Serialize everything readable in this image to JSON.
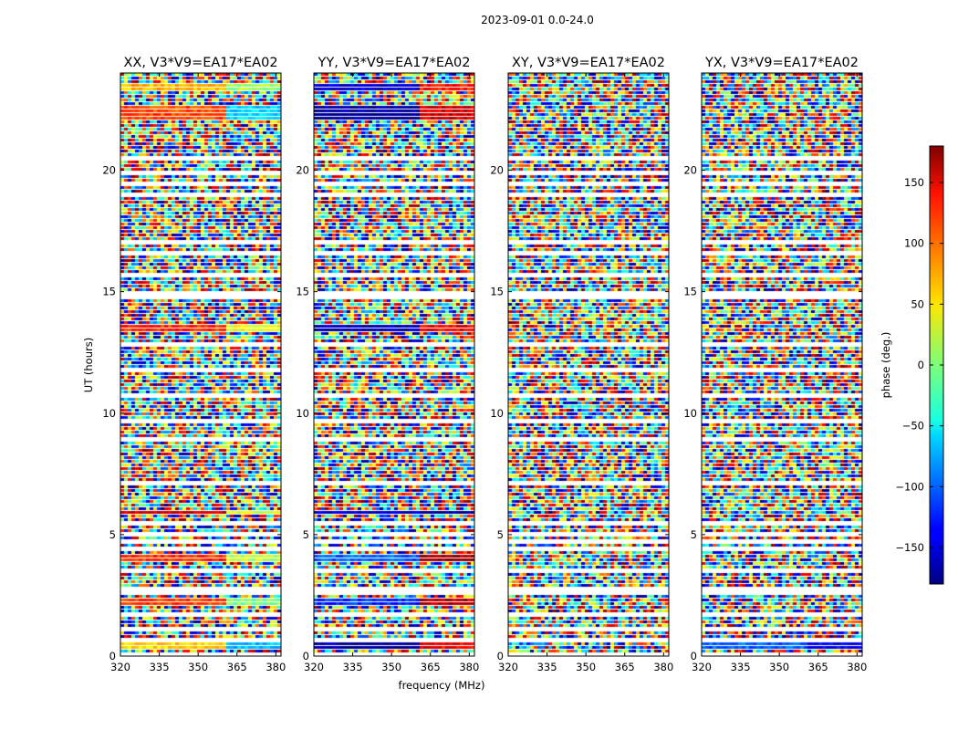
{
  "chart_data": {
    "type": "heatmap",
    "suptitle": "2023-09-01 0.0-24.0",
    "xlabel": "frequency (MHz)",
    "ylabel": "UT (hours)",
    "xlim": [
      320,
      382
    ],
    "ylim": [
      0,
      24
    ],
    "xticks": [
      320,
      335,
      350,
      365,
      380
    ],
    "xtick_labels": [
      "320",
      "335",
      "350",
      "365",
      "380"
    ],
    "yticks": [
      0,
      5,
      10,
      15,
      20
    ],
    "ytick_labels": [
      "0",
      "5",
      "10",
      "15",
      "20"
    ],
    "colormap": "jet",
    "colorbar": {
      "label": "phase (deg.)",
      "range": [
        -180,
        180
      ],
      "ticks": [
        -150,
        -100,
        -50,
        0,
        50,
        100,
        150
      ],
      "tick_labels": [
        "−150",
        "−100",
        "−50",
        "0",
        "50",
        "100",
        "150"
      ]
    },
    "panels": [
      {
        "title": "XX, V3*V9=EA17*EA02",
        "coherent_bands": [
          {
            "t0": 0.3,
            "t1": 0.6,
            "phase_low": 60,
            "phase_high": -70
          },
          {
            "t0": 2.1,
            "t1": 2.3,
            "phase_low": 110,
            "phase_high": 0
          },
          {
            "t0": 3.8,
            "t1": 4.1,
            "phase_low": 120,
            "phase_high": 20
          },
          {
            "t0": 5.8,
            "t1": 6.0,
            "phase_low": 150,
            "phase_high": 30
          },
          {
            "t0": 13.3,
            "t1": 13.6,
            "phase_low": 120,
            "phase_high": 40
          },
          {
            "t0": 22.0,
            "t1": 22.6,
            "phase_low": 110,
            "phase_high": -60
          },
          {
            "t0": 23.2,
            "t1": 23.5,
            "phase_low": 70,
            "phase_high": 10
          }
        ]
      },
      {
        "title": "YY, V3*V9=EA17*EA02",
        "coherent_bands": [
          {
            "t0": 0.3,
            "t1": 0.6,
            "phase_low": -170,
            "phase_high": 140
          },
          {
            "t0": 2.1,
            "t1": 2.3,
            "phase_low": -120,
            "phase_high": 160
          },
          {
            "t0": 3.8,
            "t1": 4.1,
            "phase_low": -100,
            "phase_high": 170
          },
          {
            "t0": 5.8,
            "t1": 6.0,
            "phase_low": -150,
            "phase_high": -170
          },
          {
            "t0": 13.3,
            "t1": 13.6,
            "phase_low": -160,
            "phase_high": 140
          },
          {
            "t0": 22.0,
            "t1": 22.6,
            "phase_low": -170,
            "phase_high": 150
          },
          {
            "t0": 23.2,
            "t1": 23.5,
            "phase_low": -150,
            "phase_high": 130
          }
        ]
      },
      {
        "title": "XY, V3*V9=EA17*EA02",
        "coherent_bands": []
      },
      {
        "title": "YX, V3*V9=EA17*EA02",
        "coherent_bands": [
          {
            "t0": 0.2,
            "t1": 0.55,
            "phase_low": -100,
            "phase_high": -140
          }
        ]
      }
    ],
    "flagged_rows_hours": [
      0.0,
      0.7,
      1.1,
      1.75,
      2.55,
      2.75,
      3.55,
      4.35,
      4.65,
      5.0,
      5.5,
      7.1,
      8.9,
      9.7,
      10.7,
      11.7,
      12.8,
      14.7,
      14.95,
      15.6,
      16.6,
      17.0,
      18.9,
      19.45,
      19.9,
      20.4,
      21.3,
      21.9,
      23.7
    ]
  }
}
